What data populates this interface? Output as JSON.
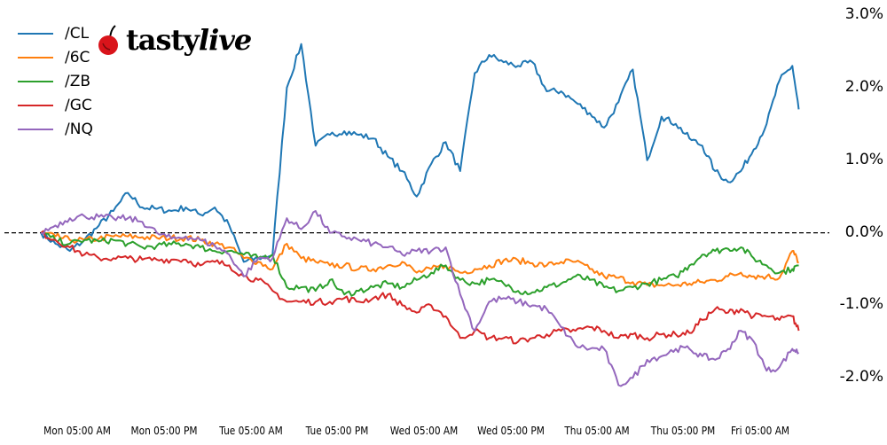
{
  "logo": {
    "text": "tastylive",
    "part1": "tasty",
    "part2": "live"
  },
  "chart_data": {
    "type": "line",
    "title": "",
    "xlabel": "",
    "ylabel": "",
    "y_unit": "%",
    "ylim": [
      -2.35,
      3.0
    ],
    "grid": false,
    "legend_placement": "top-left",
    "reference_line": {
      "value": 0.0,
      "style": "dashed",
      "color": "#000000"
    },
    "y_ticks": [
      {
        "value": 3.0,
        "label": "3.0%"
      },
      {
        "value": 2.0,
        "label": "2.0%"
      },
      {
        "value": 1.0,
        "label": "1.0%"
      },
      {
        "value": 0.0,
        "label": "0.0%"
      },
      {
        "value": -1.0,
        "label": "-1.0%"
      },
      {
        "value": -2.0,
        "label": "-2.0%"
      }
    ],
    "x_ticks": [
      {
        "time": "Mon 05:00",
        "label": "Mon 05:00 AM"
      },
      {
        "time": "Mon 17:00",
        "label": "Mon 05:00 PM"
      },
      {
        "time": "Tue 05:00",
        "label": "Tue 05:00 AM"
      },
      {
        "time": "Tue 17:00",
        "label": "Tue 05:00 PM"
      },
      {
        "time": "Wed 05:00",
        "label": "Wed 05:00 AM"
      },
      {
        "time": "Wed 17:00",
        "label": "Wed 05:00 PM"
      },
      {
        "time": "Thu 05:00",
        "label": "Thu 05:00 AM"
      },
      {
        "time": "Thu 17:00",
        "label": "Thu 05:00 PM"
      },
      {
        "time": "Fri 05:00",
        "label": "Fri 05:00 AM"
      }
    ],
    "x": [
      "Mon 00:00",
      "Mon 02:00",
      "Mon 04:00",
      "Mon 06:00",
      "Mon 08:00",
      "Mon 10:00",
      "Mon 12:00",
      "Mon 14:00",
      "Mon 16:00",
      "Mon 18:00",
      "Mon 20:00",
      "Mon 22:00",
      "Tue 00:00",
      "Tue 02:00",
      "Tue 04:00",
      "Tue 06:00",
      "Tue 08:00",
      "Tue 10:00",
      "Tue 12:00",
      "Tue 14:00",
      "Tue 16:00",
      "Tue 18:00",
      "Tue 20:00",
      "Tue 22:00",
      "Wed 00:00",
      "Wed 02:00",
      "Wed 04:00",
      "Wed 06:00",
      "Wed 08:00",
      "Wed 10:00",
      "Wed 12:00",
      "Wed 14:00",
      "Wed 16:00",
      "Wed 18:00",
      "Wed 20:00",
      "Wed 22:00",
      "Thu 00:00",
      "Thu 02:00",
      "Thu 04:00",
      "Thu 06:00",
      "Thu 08:00",
      "Thu 10:00",
      "Thu 12:00",
      "Thu 14:00",
      "Thu 16:00",
      "Thu 18:00",
      "Thu 20:00",
      "Thu 22:00",
      "Fri 00:00",
      "Fri 02:00",
      "Fri 04:00",
      "Fri 06:00",
      "Fri 08:00",
      "Fri 10:00",
      "Fri 11:00"
    ],
    "series": [
      {
        "name": "/CL",
        "color": "#1f77b4",
        "values": [
          0.0,
          -0.15,
          -0.25,
          -0.1,
          0.1,
          0.3,
          0.55,
          0.35,
          0.33,
          0.3,
          0.35,
          0.25,
          0.35,
          0.1,
          -0.4,
          -0.35,
          -0.3,
          2.0,
          2.6,
          1.2,
          1.35,
          1.4,
          1.35,
          1.3,
          1.05,
          0.85,
          0.5,
          0.95,
          1.25,
          0.85,
          2.2,
          2.45,
          2.35,
          2.3,
          2.35,
          1.95,
          1.95,
          1.8,
          1.65,
          1.45,
          1.8,
          2.25,
          1.0,
          1.6,
          1.5,
          1.3,
          1.2,
          0.85,
          0.7,
          0.85,
          1.15,
          1.5,
          2.1,
          2.3,
          1.7
        ]
      },
      {
        "name": "/6C",
        "color": "#ff7f0e",
        "values": [
          0.0,
          -0.05,
          -0.1,
          -0.1,
          -0.08,
          -0.05,
          -0.05,
          -0.06,
          -0.07,
          -0.07,
          -0.07,
          -0.1,
          -0.15,
          -0.2,
          -0.35,
          -0.4,
          -0.5,
          -0.15,
          -0.35,
          -0.4,
          -0.45,
          -0.45,
          -0.5,
          -0.5,
          -0.45,
          -0.4,
          -0.55,
          -0.5,
          -0.45,
          -0.55,
          -0.5,
          -0.45,
          -0.38,
          -0.38,
          -0.42,
          -0.45,
          -0.4,
          -0.4,
          -0.5,
          -0.6,
          -0.62,
          -0.68,
          -0.72,
          -0.72,
          -0.72,
          -0.7,
          -0.68,
          -0.65,
          -0.6,
          -0.55,
          -0.6,
          -0.6,
          -0.62,
          -0.25,
          -0.4
        ]
      },
      {
        "name": "/ZB",
        "color": "#2ca02c",
        "values": [
          0.0,
          -0.1,
          -0.15,
          -0.1,
          -0.12,
          -0.1,
          -0.15,
          -0.2,
          -0.18,
          -0.16,
          -0.15,
          -0.2,
          -0.25,
          -0.25,
          -0.3,
          -0.35,
          -0.3,
          -0.75,
          -0.75,
          -0.8,
          -0.65,
          -0.85,
          -0.8,
          -0.75,
          -0.7,
          -0.75,
          -0.65,
          -0.55,
          -0.45,
          -0.65,
          -0.7,
          -0.65,
          -0.7,
          -0.8,
          -0.82,
          -0.75,
          -0.7,
          -0.6,
          -0.65,
          -0.75,
          -0.8,
          -0.75,
          -0.7,
          -0.65,
          -0.6,
          -0.45,
          -0.3,
          -0.25,
          -0.22,
          -0.2,
          -0.35,
          -0.45,
          -0.55,
          -0.5,
          -0.45
        ]
      },
      {
        "name": "/GC",
        "color": "#d62728",
        "values": [
          0.0,
          -0.1,
          -0.2,
          -0.3,
          -0.35,
          -0.35,
          -0.35,
          -0.37,
          -0.37,
          -0.37,
          -0.37,
          -0.45,
          -0.4,
          -0.45,
          -0.6,
          -0.65,
          -0.8,
          -0.95,
          -0.95,
          -0.95,
          -0.95,
          -0.9,
          -0.95,
          -0.9,
          -0.85,
          -1.0,
          -1.1,
          -1.0,
          -1.15,
          -1.45,
          -1.35,
          -1.45,
          -1.45,
          -1.5,
          -1.45,
          -1.4,
          -1.35,
          -1.35,
          -1.3,
          -1.35,
          -1.45,
          -1.4,
          -1.45,
          -1.4,
          -1.4,
          -1.38,
          -1.2,
          -1.05,
          -1.1,
          -1.05,
          -1.15,
          -1.15,
          -1.2,
          -1.15,
          -1.35
        ]
      },
      {
        "name": "/NQ",
        "color": "#9467bd",
        "values": [
          0.0,
          0.1,
          0.2,
          0.23,
          0.22,
          0.2,
          0.2,
          0.15,
          0.0,
          -0.08,
          -0.05,
          -0.1,
          -0.18,
          -0.3,
          -0.6,
          -0.35,
          -0.35,
          0.2,
          0.05,
          0.3,
          0.0,
          -0.05,
          -0.1,
          -0.15,
          -0.2,
          -0.3,
          -0.25,
          -0.25,
          -0.2,
          -0.85,
          -1.35,
          -0.95,
          -0.9,
          -0.95,
          -1.0,
          -1.05,
          -1.3,
          -1.55,
          -1.6,
          -1.6,
          -2.1,
          -2.0,
          -1.75,
          -1.7,
          -1.6,
          -1.6,
          -1.7,
          -1.75,
          -1.6,
          -1.35,
          -1.5,
          -1.9,
          -1.85,
          -1.6,
          -1.65
        ]
      }
    ]
  }
}
